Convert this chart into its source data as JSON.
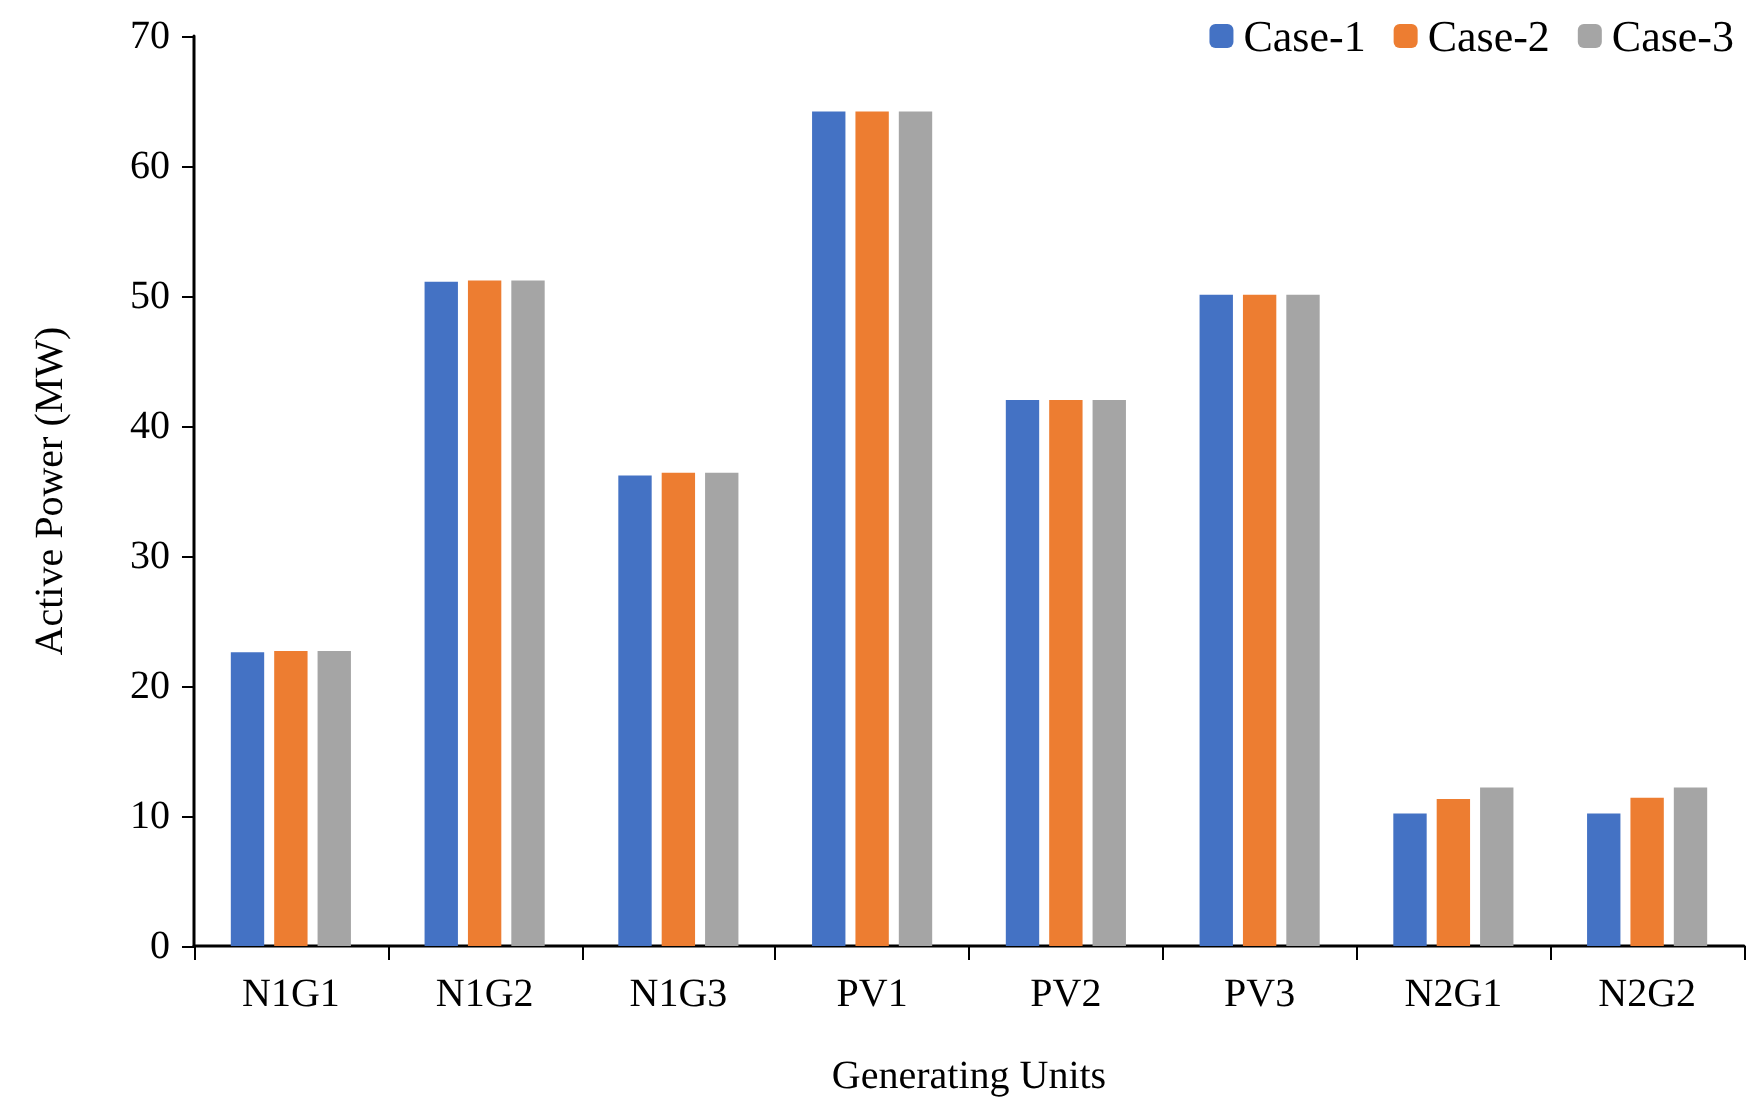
{
  "chart_data": {
    "type": "bar",
    "xlabel": "Generating Units",
    "ylabel": "Active Power (MW)",
    "categories": [
      "N1G1",
      "N1G2",
      "N1G3",
      "PV1",
      "PV2",
      "PV3",
      "N2G1",
      "N2G2"
    ],
    "series": [
      {
        "name": "Case-1",
        "color": "#4472c4",
        "values": [
          22.6,
          51.1,
          36.2,
          64.2,
          42.0,
          50.1,
          10.2,
          10.2
        ]
      },
      {
        "name": "Case-2",
        "color": "#ed7d31",
        "values": [
          22.7,
          51.2,
          36.4,
          64.2,
          42.0,
          50.1,
          11.3,
          11.4
        ]
      },
      {
        "name": "Case-3",
        "color": "#a5a5a5",
        "values": [
          22.7,
          51.2,
          36.4,
          64.2,
          42.0,
          50.1,
          12.2,
          12.2
        ]
      }
    ],
    "ylim": [
      0,
      70
    ],
    "yticks": [
      0,
      10,
      20,
      30,
      40,
      50,
      60,
      70
    ],
    "grid": false,
    "legend": "top right"
  }
}
